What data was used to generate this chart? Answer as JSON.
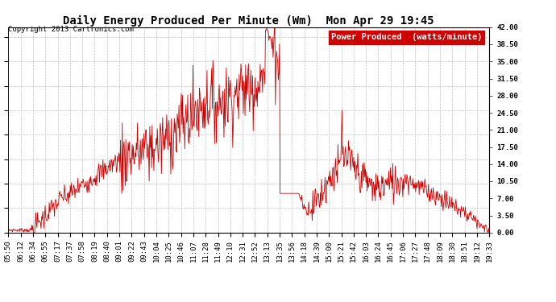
{
  "title": "Daily Energy Produced Per Minute (Wm)  Mon Apr 29 19:45",
  "copyright": "Copyright 2013 Cartronics.com",
  "legend_label": "Power Produced  (watts/minute)",
  "legend_bg": "#cc0000",
  "legend_fg": "#ffffff",
  "line_color": "#cc0000",
  "bg_color": "#ffffff",
  "grid_color": "#bbbbbb",
  "ylabel_right_values": [
    0.0,
    3.5,
    7.0,
    10.5,
    14.0,
    17.5,
    21.0,
    24.5,
    28.0,
    31.5,
    35.0,
    38.5,
    42.0
  ],
  "ylim": [
    0,
    42
  ],
  "x_labels": [
    "05:50",
    "06:12",
    "06:34",
    "06:55",
    "07:17",
    "07:37",
    "07:58",
    "08:19",
    "08:40",
    "09:01",
    "09:22",
    "09:43",
    "10:04",
    "10:25",
    "10:46",
    "11:07",
    "11:28",
    "11:49",
    "12:10",
    "12:31",
    "12:52",
    "13:13",
    "13:35",
    "13:56",
    "14:18",
    "14:39",
    "15:00",
    "15:21",
    "15:42",
    "16:03",
    "16:24",
    "16:45",
    "17:06",
    "17:27",
    "17:48",
    "18:09",
    "18:30",
    "18:51",
    "19:12",
    "19:33"
  ],
  "title_fontsize": 10,
  "tick_fontsize": 6.5,
  "copyright_fontsize": 6.5,
  "legend_fontsize": 7.5
}
